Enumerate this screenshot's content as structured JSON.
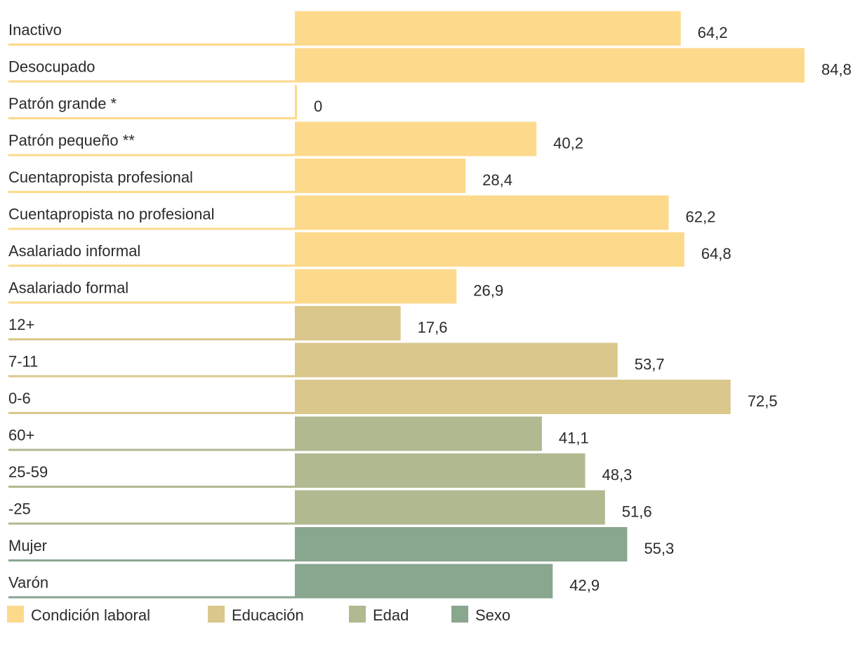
{
  "chart_data": {
    "type": "bar",
    "orientation": "horizontal",
    "title": "",
    "xlabel": "",
    "ylabel": "",
    "xlim": [
      0,
      84.8
    ],
    "grid": false,
    "legend_position": "bottom-left",
    "decimal_separator": ",",
    "categories": [
      "Inactivo",
      "Desocupado",
      "Patrón grande *",
      "Patrón pequeño **",
      "Cuentapropista profesional",
      "Cuentapropista no profesional",
      "Asalariado informal",
      "Asalariado formal",
      "12+",
      "7-11",
      "0-6",
      "60+",
      "25-59",
      "-25",
      "Mujer",
      "Varón"
    ],
    "values": [
      64.2,
      84.8,
      0,
      40.2,
      28.4,
      62.2,
      64.8,
      26.9,
      17.6,
      53.7,
      72.5,
      41.1,
      48.3,
      51.6,
      55.3,
      42.9
    ],
    "value_labels": [
      "64,2",
      "84,8",
      "0",
      "40,2",
      "28,4",
      "62,2",
      "64,8",
      "26,9",
      "17,6",
      "53,7",
      "72,5",
      "41,1",
      "48,3",
      "51,6",
      "55,3",
      "42,9"
    ],
    "group_index": [
      0,
      0,
      0,
      0,
      0,
      0,
      0,
      0,
      1,
      1,
      1,
      2,
      2,
      2,
      3,
      3
    ],
    "groups": [
      {
        "name": "Condición laboral",
        "color": "#fdd98b"
      },
      {
        "name": "Educación",
        "color": "#d9c78b"
      },
      {
        "name": "Edad",
        "color": "#b0b990"
      },
      {
        "name": "Sexo",
        "color": "#89a68f"
      }
    ]
  }
}
